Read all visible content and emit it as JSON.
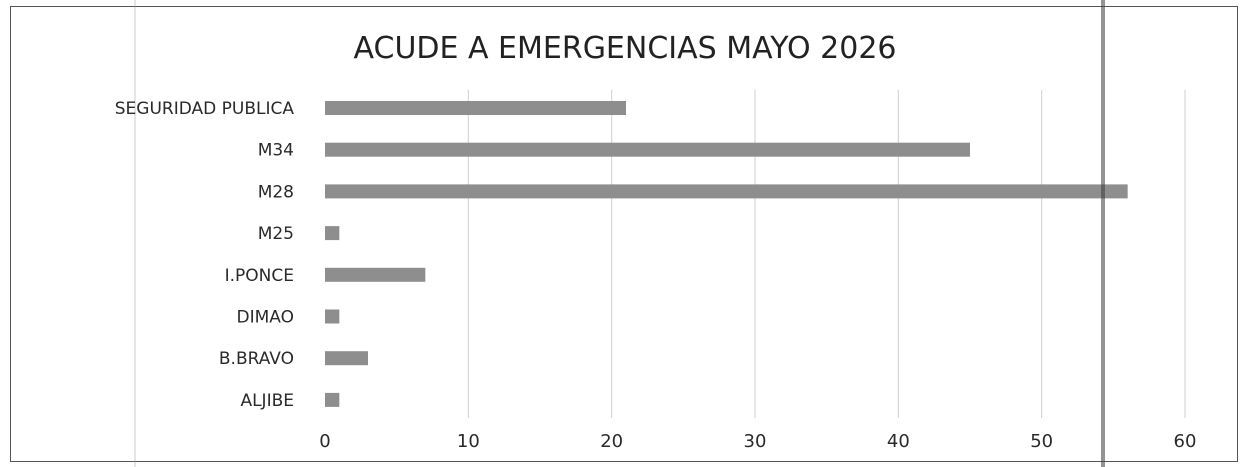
{
  "chart_data": {
    "type": "bar",
    "orientation": "horizontal",
    "title": "ACUDE A EMERGENCIAS MAYO 2026",
    "xlabel": "",
    "ylabel": "",
    "categories": [
      "SEGURIDAD PUBLICA",
      "M34",
      "M28",
      "M25",
      "I.PONCE",
      "DIMAO",
      "B.BRAVO",
      "ALJIBE"
    ],
    "values": [
      21,
      45,
      56,
      1,
      7,
      1,
      3,
      1
    ],
    "xlim": [
      0,
      60
    ],
    "xticks": [
      "0",
      "10",
      "20",
      "30",
      "40",
      "50",
      "60"
    ],
    "grid": true,
    "legend": false,
    "bar_color": "#8e8e8e"
  }
}
